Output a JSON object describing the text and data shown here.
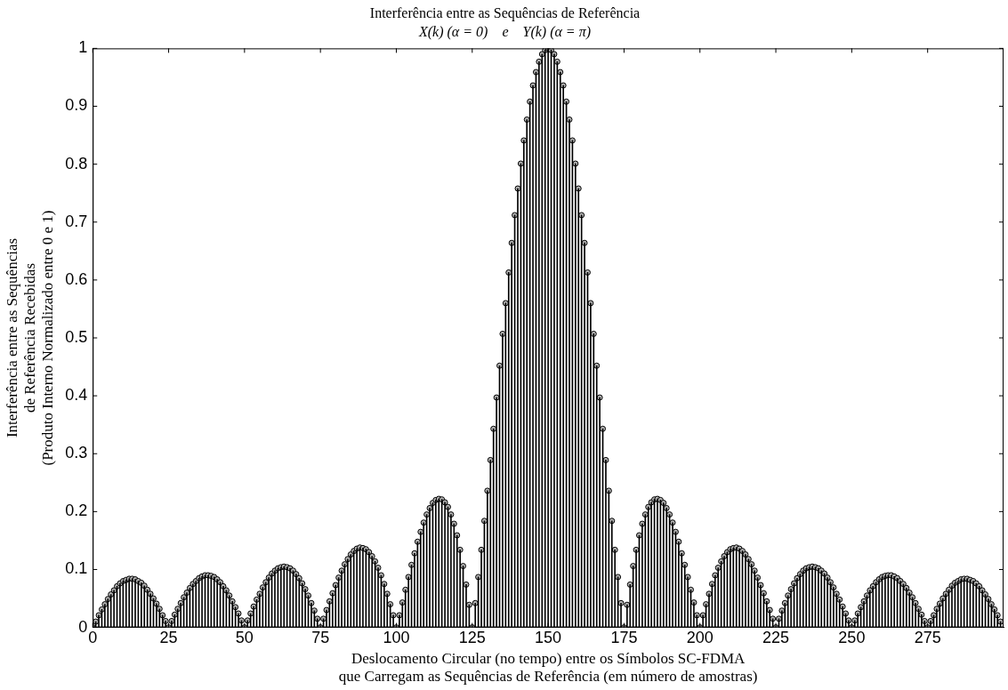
{
  "chart_data": {
    "type": "lollipop",
    "title": "Interferência entre as Sequências de Referência",
    "subtitle": "X(k) (α = 0)    e    Y(k) (α = π)",
    "xlabel": "Deslocamento Circular (no tempo) entre os Símbolos SC-FDMA\nque Carregam as Sequências de Referência (em número de amostras)",
    "ylabel": "Interferência entre as Sequências\nde Referência Recebidas\n(Produto Interno Normalizado entre 0 e 1)",
    "x": [
      0,
      1,
      2,
      3,
      4,
      5,
      6,
      7,
      8,
      9,
      10,
      11,
      12,
      13,
      14,
      15,
      16,
      17,
      18,
      19,
      20,
      21,
      22,
      23,
      24,
      25,
      26,
      27,
      28,
      29,
      30,
      31,
      32,
      33,
      34,
      35,
      36,
      37,
      38,
      39,
      40,
      41,
      42,
      43,
      44,
      45,
      46,
      47,
      48,
      49,
      50,
      51,
      52,
      53,
      54,
      55,
      56,
      57,
      58,
      59,
      60,
      61,
      62,
      63,
      64,
      65,
      66,
      67,
      68,
      69,
      70,
      71,
      72,
      73,
      74,
      75,
      76,
      77,
      78,
      79,
      80,
      81,
      82,
      83,
      84,
      85,
      86,
      87,
      88,
      89,
      90,
      91,
      92,
      93,
      94,
      95,
      96,
      97,
      98,
      99,
      100,
      101,
      102,
      103,
      104,
      105,
      106,
      107,
      108,
      109,
      110,
      111,
      112,
      113,
      114,
      115,
      116,
      117,
      118,
      119,
      120,
      121,
      122,
      123,
      124,
      125,
      126,
      127,
      128,
      129,
      130,
      131,
      132,
      133,
      134,
      135,
      136,
      137,
      138,
      139,
      140,
      141,
      142,
      143,
      144,
      145,
      146,
      147,
      148,
      149,
      150,
      151,
      152,
      153,
      154,
      155,
      156,
      157,
      158,
      159,
      160,
      161,
      162,
      163,
      164,
      165,
      166,
      167,
      168,
      169,
      170,
      171,
      172,
      173,
      174,
      175,
      176,
      177,
      178,
      179,
      180,
      181,
      182,
      183,
      184,
      185,
      186,
      187,
      188,
      189,
      190,
      191,
      192,
      193,
      194,
      195,
      196,
      197,
      198,
      199,
      200,
      201,
      202,
      203,
      204,
      205,
      206,
      207,
      208,
      209,
      210,
      211,
      212,
      213,
      214,
      215,
      216,
      217,
      218,
      219,
      220,
      221,
      222,
      223,
      224,
      225,
      226,
      227,
      228,
      229,
      230,
      231,
      232,
      233,
      234,
      235,
      236,
      237,
      238,
      239,
      240,
      241,
      242,
      243,
      244,
      245,
      246,
      247,
      248,
      249,
      250,
      251,
      252,
      253,
      254,
      255,
      256,
      257,
      258,
      259,
      260,
      261,
      262,
      263,
      264,
      265,
      266,
      267,
      268,
      269,
      270,
      271,
      272,
      273,
      274,
      275,
      276,
      277,
      278,
      279,
      280,
      281,
      282,
      283,
      284,
      285,
      286,
      287,
      288,
      289,
      290,
      291,
      292,
      293,
      294,
      295,
      296,
      297,
      298,
      299
    ],
    "values": [
      0,
      0.01,
      0.021,
      0.031,
      0.04,
      0.049,
      0.057,
      0.064,
      0.071,
      0.076,
      0.08,
      0.082,
      0.084,
      0.084,
      0.083,
      0.08,
      0.077,
      0.072,
      0.065,
      0.058,
      0.05,
      0.041,
      0.032,
      0.021,
      0.011,
      0,
      0.011,
      0.022,
      0.032,
      0.042,
      0.052,
      0.06,
      0.068,
      0.075,
      0.08,
      0.085,
      0.088,
      0.09,
      0.09,
      0.089,
      0.087,
      0.083,
      0.078,
      0.071,
      0.064,
      0.055,
      0.045,
      0.035,
      0.024,
      0.012,
      0,
      0.012,
      0.024,
      0.036,
      0.048,
      0.058,
      0.069,
      0.078,
      0.086,
      0.093,
      0.098,
      0.102,
      0.104,
      0.105,
      0.104,
      0.102,
      0.098,
      0.092,
      0.085,
      0.076,
      0.066,
      0.055,
      0.042,
      0.029,
      0.015,
      0,
      0.015,
      0.03,
      0.045,
      0.059,
      0.073,
      0.086,
      0.098,
      0.109,
      0.118,
      0.126,
      0.132,
      0.136,
      0.138,
      0.137,
      0.135,
      0.13,
      0.123,
      0.114,
      0.103,
      0.09,
      0.075,
      0.058,
      0.04,
      0.021,
      0,
      0.021,
      0.043,
      0.065,
      0.087,
      0.108,
      0.128,
      0.148,
      0.165,
      0.181,
      0.195,
      0.206,
      0.215,
      0.22,
      0.222,
      0.221,
      0.216,
      0.208,
      0.195,
      0.179,
      0.159,
      0.134,
      0.106,
      0.074,
      0.039,
      0,
      0.042,
      0.087,
      0.134,
      0.184,
      0.236,
      0.289,
      0.343,
      0.397,
      0.452,
      0.507,
      0.56,
      0.613,
      0.664,
      0.712,
      0.758,
      0.801,
      0.841,
      0.877,
      0.908,
      0.936,
      0.959,
      0.977,
      0.99,
      0.997,
      1,
      0.997,
      0.99,
      0.977,
      0.959,
      0.936,
      0.908,
      0.877,
      0.841,
      0.801,
      0.758,
      0.712,
      0.664,
      0.613,
      0.56,
      0.507,
      0.452,
      0.397,
      0.343,
      0.289,
      0.236,
      0.184,
      0.134,
      0.087,
      0.042,
      0,
      0.039,
      0.074,
      0.106,
      0.134,
      0.159,
      0.179,
      0.195,
      0.208,
      0.216,
      0.221,
      0.222,
      0.22,
      0.215,
      0.206,
      0.195,
      0.181,
      0.165,
      0.148,
      0.128,
      0.108,
      0.087,
      0.065,
      0.043,
      0.021,
      0,
      0.021,
      0.04,
      0.058,
      0.075,
      0.09,
      0.103,
      0.114,
      0.123,
      0.13,
      0.135,
      0.137,
      0.138,
      0.136,
      0.132,
      0.126,
      0.118,
      0.109,
      0.098,
      0.086,
      0.073,
      0.059,
      0.045,
      0.03,
      0.015,
      0,
      0.015,
      0.029,
      0.042,
      0.055,
      0.066,
      0.076,
      0.085,
      0.092,
      0.098,
      0.102,
      0.104,
      0.105,
      0.104,
      0.102,
      0.098,
      0.093,
      0.086,
      0.078,
      0.069,
      0.058,
      0.048,
      0.036,
      0.024,
      0.012,
      0,
      0.012,
      0.024,
      0.035,
      0.045,
      0.055,
      0.064,
      0.071,
      0.078,
      0.083,
      0.087,
      0.089,
      0.09,
      0.09,
      0.088,
      0.085,
      0.08,
      0.075,
      0.068,
      0.06,
      0.052,
      0.042,
      0.032,
      0.022,
      0.011,
      0,
      0.011,
      0.021,
      0.032,
      0.041,
      0.05,
      0.058,
      0.065,
      0.072,
      0.077,
      0.08,
      0.083,
      0.084,
      0.084,
      0.082,
      0.08,
      0.076,
      0.071,
      0.064,
      0.057,
      0.049,
      0.04,
      0.031,
      0.021,
      0.01
    ],
    "color": "#000000",
    "marker": "circle",
    "xlim": [
      0,
      300
    ],
    "xticks": [
      0,
      25,
      50,
      75,
      100,
      125,
      150,
      175,
      200,
      225,
      250,
      275
    ],
    "ylim": [
      0,
      1
    ],
    "yticks": [
      0,
      0.1,
      0.2,
      0.3,
      0.4,
      0.5,
      0.6,
      0.7,
      0.8,
      0.9,
      1
    ]
  }
}
